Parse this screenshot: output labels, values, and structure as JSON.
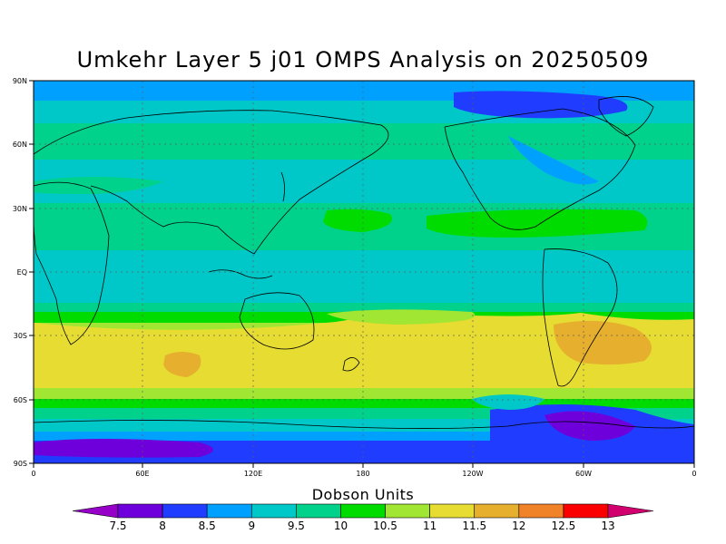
{
  "title": "Umkehr Layer 5 j01 OMPS Analysis on 20250509",
  "colorbar": {
    "title": "Dobson Units",
    "levels": [
      "7.5",
      "8",
      "8.5",
      "9",
      "9.5",
      "10",
      "10.5",
      "11",
      "11.5",
      "12",
      "12.5",
      "13"
    ],
    "colors": [
      "#9600c8",
      "#6e00dc",
      "#1f3cff",
      "#00a0ff",
      "#00c8c8",
      "#00d28c",
      "#00dc00",
      "#a0e632",
      "#e6dc32",
      "#e6af2d",
      "#f08228",
      "#fa0000",
      "#d2006e"
    ]
  },
  "axes": {
    "x_labels": [
      "0",
      "60E",
      "120E",
      "180",
      "120W",
      "60W",
      "0"
    ],
    "y_labels": [
      "90N",
      "60N",
      "30N",
      "EQ",
      "30S",
      "60S",
      "90S"
    ]
  },
  "chart_data": {
    "type": "heatmap",
    "title": "Umkehr Layer 5 j01 OMPS Analysis on 20250509",
    "xlim": [
      0,
      360
    ],
    "ylim": [
      -90,
      90
    ],
    "units": "Dobson Units",
    "zonal_bands": [
      {
        "lat_range": [
          80,
          90
        ],
        "value": 9
      },
      {
        "lat_range": [
          55,
          80
        ],
        "value": 9.5
      },
      {
        "lat_range": [
          35,
          55
        ],
        "value": 9.5
      },
      {
        "lat_range": [
          15,
          35
        ],
        "value": 10
      },
      {
        "lat_range": [
          -15,
          15
        ],
        "value": 9.5
      },
      {
        "lat_range": [
          -25,
          -15
        ],
        "value": 10.5
      },
      {
        "lat_range": [
          -50,
          -25
        ],
        "value": 11.5
      },
      {
        "lat_range": [
          -60,
          -50
        ],
        "value": 10.5
      },
      {
        "lat_range": [
          -72,
          -60
        ],
        "value": 9.5
      },
      {
        "lat_range": [
          -90,
          -72
        ],
        "value": 8
      }
    ]
  }
}
